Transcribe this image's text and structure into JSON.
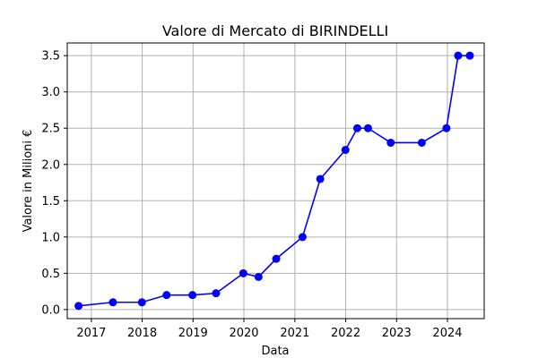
{
  "chart_data": {
    "type": "line",
    "title": "Valore di Mercato di BIRINDELLI",
    "xlabel": "Data",
    "ylabel": "Valore in Milioni €",
    "x_ticks": [
      "2017",
      "2018",
      "2019",
      "2020",
      "2021",
      "2022",
      "2023",
      "2024"
    ],
    "y_ticks": [
      "0.0",
      "0.5",
      "1.0",
      "1.5",
      "2.0",
      "2.5",
      "3.0",
      "3.5"
    ],
    "xlim": [
      "2016-07-12",
      "2024-09-21"
    ],
    "ylim": [
      -0.125,
      3.675
    ],
    "grid": true,
    "series": [
      {
        "color": "#0000ff",
        "marker": "circle",
        "points": [
          {
            "date": "2016-10-01",
            "value": 0.05
          },
          {
            "date": "2017-06-05",
            "value": 0.1
          },
          {
            "date": "2017-12-30",
            "value": 0.1
          },
          {
            "date": "2018-06-25",
            "value": 0.2
          },
          {
            "date": "2018-12-28",
            "value": 0.2
          },
          {
            "date": "2019-06-15",
            "value": 0.225
          },
          {
            "date": "2019-12-28",
            "value": 0.5
          },
          {
            "date": "2020-04-15",
            "value": 0.45
          },
          {
            "date": "2020-08-20",
            "value": 0.7
          },
          {
            "date": "2021-02-25",
            "value": 1.0
          },
          {
            "date": "2021-07-02",
            "value": 1.8
          },
          {
            "date": "2021-12-30",
            "value": 2.2
          },
          {
            "date": "2022-03-25",
            "value": 2.5
          },
          {
            "date": "2022-06-10",
            "value": 2.5
          },
          {
            "date": "2022-11-20",
            "value": 2.3
          },
          {
            "date": "2023-07-01",
            "value": 2.3
          },
          {
            "date": "2023-12-25",
            "value": 2.5
          },
          {
            "date": "2024-03-18",
            "value": 3.5
          },
          {
            "date": "2024-06-10",
            "value": 3.5
          }
        ]
      }
    ]
  }
}
